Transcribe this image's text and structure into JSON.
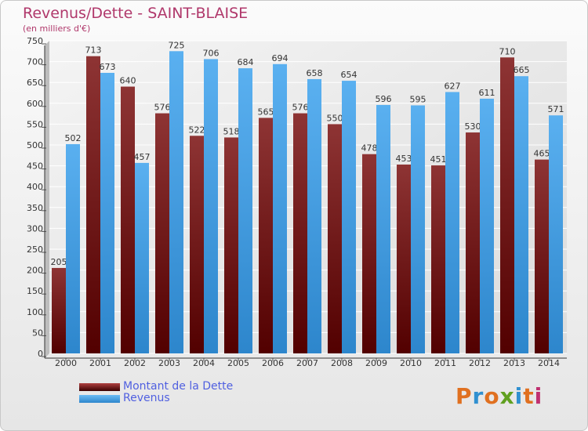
{
  "title": "Revenus/Dette - SAINT-BLAISE",
  "subtitle": "(en milliers d'€)",
  "logo_text": "Proxiti",
  "colors": {
    "dette": "#7a1c1c",
    "revenus": "#4aa3e6",
    "title": "#b0386b",
    "legend_text": "#5060e0"
  },
  "chart_data": {
    "type": "bar",
    "categories": [
      "2000",
      "2001",
      "2002",
      "2003",
      "2004",
      "2005",
      "2006",
      "2007",
      "2008",
      "2009",
      "2010",
      "2011",
      "2012",
      "2013",
      "2014"
    ],
    "series": [
      {
        "name": "Montant de la Dette",
        "values": [
          205,
          713,
          640,
          576,
          522,
          518,
          565,
          576,
          550,
          478,
          453,
          451,
          530,
          710,
          465
        ]
      },
      {
        "name": "Revenus",
        "values": [
          502,
          673,
          457,
          725,
          706,
          684,
          694,
          658,
          654,
          596,
          595,
          627,
          611,
          665,
          571
        ]
      }
    ],
    "ylim": [
      0,
      750
    ],
    "yticks": [
      0,
      50,
      100,
      150,
      200,
      250,
      300,
      350,
      400,
      450,
      500,
      550,
      600,
      650,
      700,
      750
    ],
    "grid": true,
    "legend_position": "bottom-left"
  }
}
